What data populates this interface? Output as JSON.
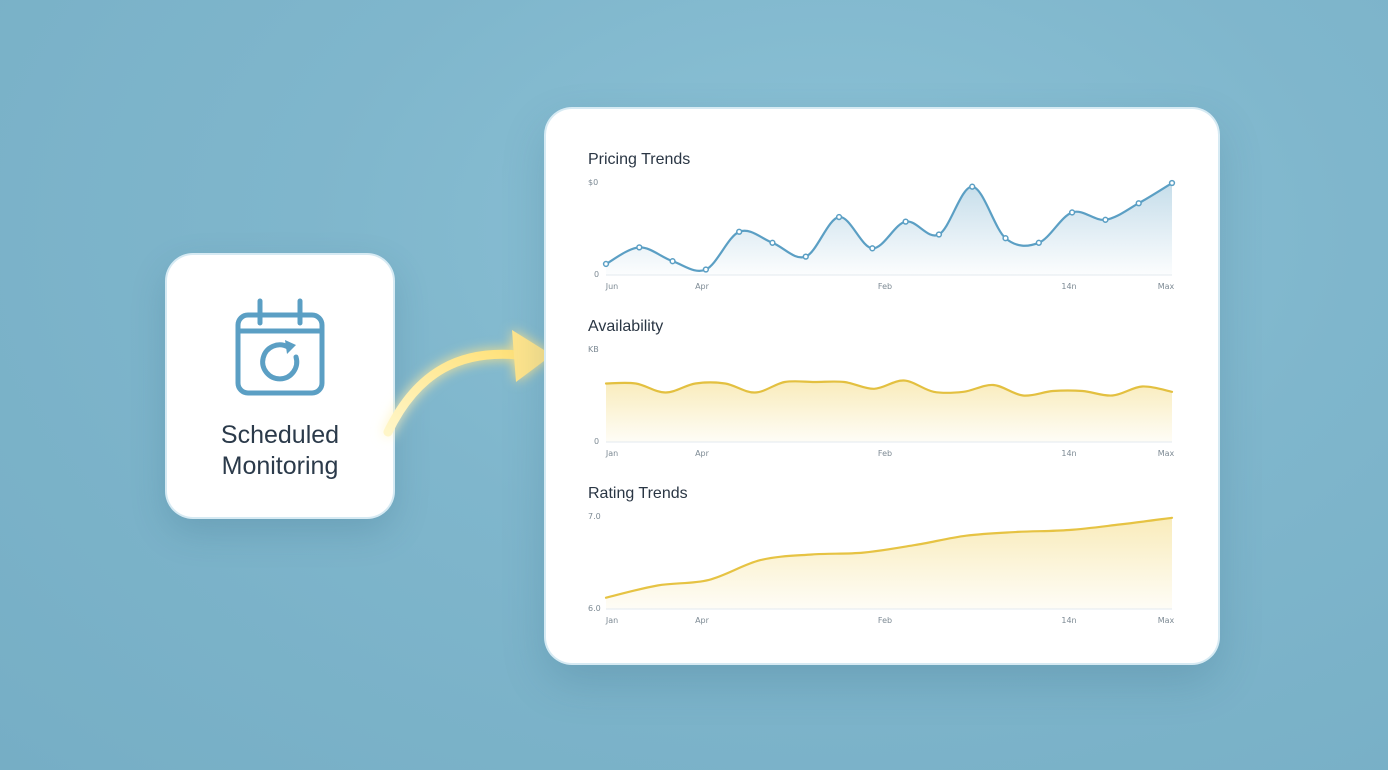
{
  "tile": {
    "label_line1": "Scheduled",
    "label_line2": "Monitoring",
    "icon": "calendar-refresh-icon"
  },
  "charts_panel": {
    "pricing": {
      "title": "Pricing Trends",
      "y_top": "$0",
      "y_zero": "0"
    },
    "availability": {
      "title": "Availability",
      "y_top": "KB",
      "y_zero": "0"
    },
    "rating": {
      "title": "Rating Trends",
      "y_top": "7.0",
      "y_zero": "6.0"
    }
  },
  "colors": {
    "blue": "#5b9fc4",
    "yellow": "#e6c343",
    "background": "#80b7cd"
  },
  "chart_data": [
    {
      "type": "area",
      "title": "Pricing Trends",
      "x_ticks": [
        "Jun",
        "Apr",
        "Feb",
        "14n",
        "Max"
      ],
      "y_ticks": [
        "$0",
        "0"
      ],
      "ylim": [
        0,
        100
      ],
      "series": [
        {
          "values": [
            12,
            30,
            15,
            6,
            47,
            35,
            20,
            63,
            29,
            58,
            44,
            96,
            40,
            35,
            68,
            60,
            78,
            100
          ]
        }
      ],
      "markers": true
    },
    {
      "type": "area",
      "title": "Availability",
      "x_ticks": [
        "Jan",
        "Apr",
        "Feb",
        "14n",
        "Max"
      ],
      "y_ticks": [
        "KB",
        "0"
      ],
      "ylim": [
        0,
        100
      ],
      "series": [
        {
          "values": [
            78,
            78,
            66,
            78,
            78,
            66,
            80,
            80,
            80,
            71,
            82,
            67,
            67,
            76,
            62,
            68,
            68,
            62,
            74,
            67
          ]
        }
      ]
    },
    {
      "type": "area",
      "title": "Rating Trends",
      "x_ticks": [
        "Jan",
        "Apr",
        "Feb",
        "14n",
        "Max"
      ],
      "y_ticks": [
        "7.0",
        "6.0"
      ],
      "ylim": [
        6.0,
        7.0
      ],
      "series": [
        {
          "values": [
            6.12,
            6.25,
            6.31,
            6.52,
            6.58,
            6.6,
            6.68,
            6.78,
            6.82,
            6.84,
            6.9,
            6.97
          ]
        }
      ]
    }
  ]
}
